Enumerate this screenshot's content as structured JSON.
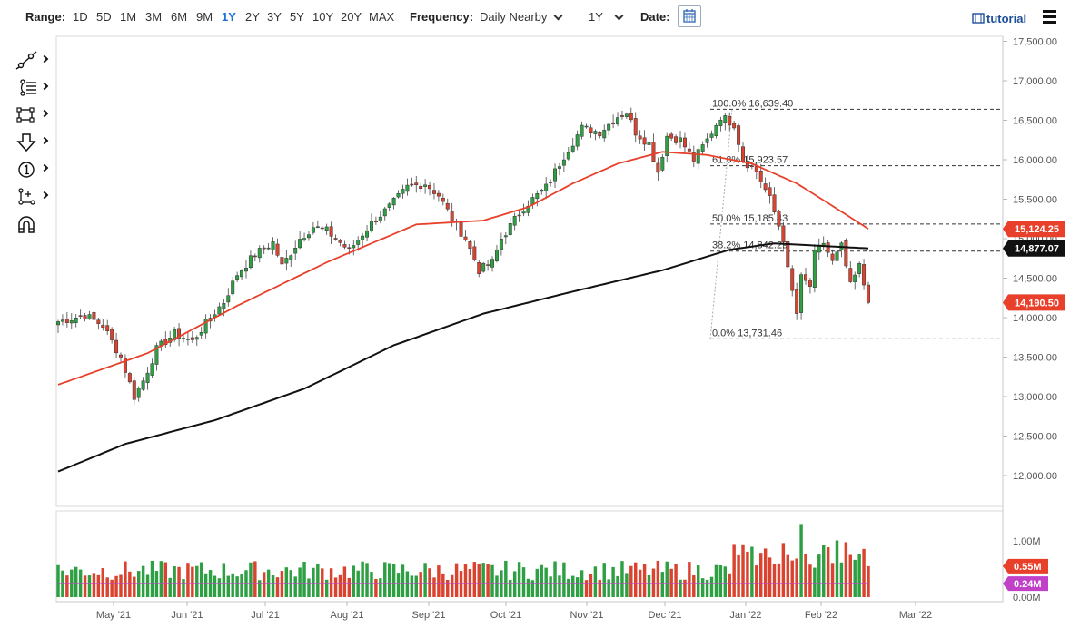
{
  "toolbar": {
    "range_label": "Range:",
    "ranges": [
      "1D",
      "5D",
      "1M",
      "3M",
      "6M",
      "9M",
      "1Y",
      "2Y",
      "3Y",
      "5Y",
      "10Y",
      "20Y",
      "MAX"
    ],
    "active_range": "1Y",
    "frequency_label": "Frequency:",
    "frequency_value": "Daily Nearby",
    "period_value": "1Y",
    "date_label": "Date:",
    "tutorial_label": "tutorial"
  },
  "tools": [
    "trendline-icon",
    "fibonacci-icon",
    "rectangle-icon",
    "arrow-down-icon",
    "number-marker-icon",
    "measure-icon",
    "magnet-icon"
  ],
  "colors": {
    "up": "#2ea043",
    "down": "#d9432f",
    "ma_fast": "#e8402a",
    "ma_slow": "#111111",
    "volume_avg": "#c040c8",
    "grid": "#d0d0d0"
  },
  "chart_data": {
    "type": "candlestick",
    "price_axis": {
      "ylim": [
        11600,
        17500
      ],
      "ticks": [
        "17,500.00",
        "17,000.00",
        "16,500.00",
        "16,000.00",
        "15,500.00",
        "15,000.00",
        "14,500.00",
        "14,000.00",
        "13,500.00",
        "13,000.00",
        "12,500.00",
        "12,000.00"
      ]
    },
    "x_axis": {
      "labels": [
        "May '21",
        "Jun '21",
        "Jul '21",
        "Aug '21",
        "Sep '21",
        "Oct '21",
        "Nov '21",
        "Dec '21",
        "Jan '22",
        "Feb '22",
        "Mar '22"
      ]
    },
    "price_tags": [
      {
        "value": "15,124.25",
        "color": "#e8402a"
      },
      {
        "value": "14,877.07",
        "color": "#111111"
      },
      {
        "value": "14,190.50",
        "color": "#e8402a"
      }
    ],
    "fibonacci": [
      {
        "label": "100.0% 16,639.40",
        "value": 16639.4
      },
      {
        "label": "61.8% 15,923.57",
        "value": 15923.57
      },
      {
        "label": "50.0% 15,185.43",
        "value": 15185.43
      },
      {
        "label": "38.2% 14,842.29",
        "value": 14842.29
      },
      {
        "label": "0.0% 13,731.46",
        "value": 13731.46
      }
    ],
    "price_path": [
      [
        0,
        13950
      ],
      [
        6,
        14030
      ],
      [
        10,
        13900
      ],
      [
        12,
        13700
      ],
      [
        14,
        13500
      ],
      [
        17,
        13000
      ],
      [
        19,
        13200
      ],
      [
        22,
        13600
      ],
      [
        26,
        13800
      ],
      [
        30,
        13700
      ],
      [
        34,
        14000
      ],
      [
        37,
        14200
      ],
      [
        40,
        14550
      ],
      [
        44,
        14800
      ],
      [
        48,
        14950
      ],
      [
        50,
        14650
      ],
      [
        54,
        15000
      ],
      [
        57,
        15150
      ],
      [
        60,
        15100
      ],
      [
        62,
        15000
      ],
      [
        65,
        14850
      ],
      [
        70,
        15200
      ],
      [
        74,
        15400
      ],
      [
        78,
        15650
      ],
      [
        82,
        15700
      ],
      [
        85,
        15550
      ],
      [
        88,
        15250
      ],
      [
        91,
        15000
      ],
      [
        94,
        14600
      ],
      [
        97,
        14700
      ],
      [
        99,
        15000
      ],
      [
        104,
        15400
      ],
      [
        109,
        15650
      ],
      [
        113,
        16050
      ],
      [
        117,
        16400
      ],
      [
        121,
        16350
      ],
      [
        125,
        16550
      ],
      [
        127,
        16600
      ],
      [
        129,
        16350
      ],
      [
        132,
        16200
      ],
      [
        134,
        15850
      ],
      [
        136,
        16300
      ],
      [
        139,
        16250
      ],
      [
        142,
        16000
      ],
      [
        145,
        16250
      ],
      [
        148,
        16550
      ],
      [
        151,
        16450
      ],
      [
        153,
        16000
      ],
      [
        156,
        15850
      ],
      [
        159,
        15500
      ],
      [
        162,
        15000
      ],
      [
        163,
        14600
      ],
      [
        165,
        14050
      ],
      [
        166,
        14500
      ],
      [
        168,
        14400
      ],
      [
        169,
        14800
      ],
      [
        171,
        14950
      ],
      [
        173,
        14700
      ],
      [
        175,
        14900
      ],
      [
        177,
        14400
      ],
      [
        179,
        14650
      ],
      [
        181,
        14190
      ]
    ],
    "ma_fast": [
      [
        0,
        13150
      ],
      [
        20,
        13550
      ],
      [
        40,
        14150
      ],
      [
        60,
        14700
      ],
      [
        80,
        15180
      ],
      [
        95,
        15230
      ],
      [
        105,
        15400
      ],
      [
        115,
        15700
      ],
      [
        125,
        15950
      ],
      [
        135,
        16100
      ],
      [
        145,
        16060
      ],
      [
        155,
        15950
      ],
      [
        165,
        15700
      ],
      [
        172,
        15450
      ],
      [
        181,
        15124.25
      ]
    ],
    "ma_slow": [
      [
        0,
        12050
      ],
      [
        15,
        12400
      ],
      [
        35,
        12700
      ],
      [
        55,
        13100
      ],
      [
        75,
        13650
      ],
      [
        95,
        14050
      ],
      [
        115,
        14330
      ],
      [
        135,
        14600
      ],
      [
        150,
        14860
      ],
      [
        160,
        14940
      ],
      [
        170,
        14910
      ],
      [
        181,
        14877.07
      ]
    ],
    "volume_axis": {
      "ticks": [
        "1.00M",
        "0.00M"
      ]
    },
    "volume_tags": [
      {
        "value": "0.55M",
        "color": "#e8402a"
      },
      {
        "value": "0.24M",
        "color": "#c040c8"
      }
    ],
    "volume_avg": 0.24
  }
}
